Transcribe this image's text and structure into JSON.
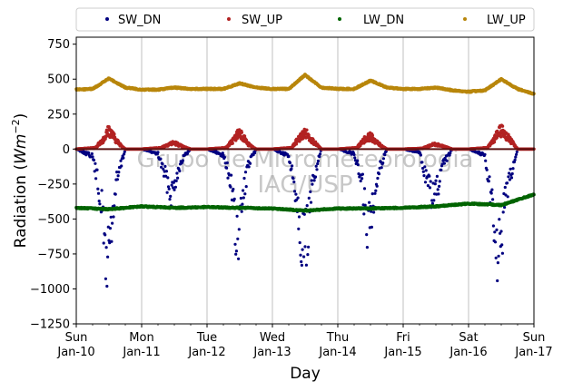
{
  "chart_data": {
    "type": "scatter",
    "xlabel": "Day",
    "ylabel_main": "Radiation (",
    "ylabel_unit": "Wm",
    "ylabel_exp": "−2",
    "ylabel_close": ")",
    "ylim": [
      -1250,
      800
    ],
    "yticks": [
      750,
      500,
      250,
      0,
      -250,
      -500,
      -750,
      -1000,
      -1250
    ],
    "ytick_labels": [
      "750",
      "500",
      "250",
      "0",
      "−250",
      "−500",
      "−750",
      "−1000",
      "−1250"
    ],
    "xlim": [
      "2024-01-10",
      "2024-01-17"
    ],
    "xtick_dates": [
      "2024-01-10",
      "2024-01-11",
      "2024-01-12",
      "2024-01-13",
      "2024-01-14",
      "2024-01-15",
      "2024-01-16",
      "2024-01-17"
    ],
    "xtick_day_labels": [
      "Sun",
      "Mon",
      "Tue",
      "Wed",
      "Thu",
      "Fri",
      "Sat",
      "Sun"
    ],
    "xtick_date_labels": [
      "Jan-10",
      "Jan-11",
      "Jan-12",
      "Jan-13",
      "Jan-14",
      "Jan-15",
      "Jan-16",
      "Jan-17"
    ],
    "grid": "vertical",
    "legend_position": "top",
    "watermark_line1": "Grupo de Micrometeorologia",
    "watermark_line2": "IAG/USP",
    "series": [
      {
        "name": "SW_DN",
        "color": "#000080",
        "x": [
          "2024-01-10",
          "2024-01-10T06:00",
          "2024-01-10T09:00",
          "2024-01-10T11:00",
          "2024-01-10T13:00",
          "2024-01-10T15:00",
          "2024-01-10T18:00",
          "2024-01-11",
          "2024-01-11T06:00",
          "2024-01-11T09:00",
          "2024-01-11T11:00",
          "2024-01-11T13:00",
          "2024-01-11T15:00",
          "2024-01-11T18:00",
          "2024-01-12",
          "2024-01-12T06:00",
          "2024-01-12T09:00",
          "2024-01-12T11:00",
          "2024-01-12T13:00",
          "2024-01-12T15:00",
          "2024-01-12T18:00",
          "2024-01-13",
          "2024-01-13T06:00",
          "2024-01-13T09:00",
          "2024-01-13T11:00",
          "2024-01-13T13:00",
          "2024-01-13T15:00",
          "2024-01-13T18:00",
          "2024-01-14",
          "2024-01-14T06:00",
          "2024-01-14T09:00",
          "2024-01-14T11:00",
          "2024-01-14T13:00",
          "2024-01-14T15:00",
          "2024-01-14T18:00",
          "2024-01-15",
          "2024-01-15T06:00",
          "2024-01-15T09:00",
          "2024-01-15T11:00",
          "2024-01-15T13:00",
          "2024-01-15T15:00",
          "2024-01-15T18:00",
          "2024-01-16",
          "2024-01-16T06:00",
          "2024-01-16T09:00",
          "2024-01-16T11:00",
          "2024-01-16T13:00",
          "2024-01-16T15:00",
          "2024-01-16T18:00",
          "2024-01-17"
        ],
        "values": [
          0,
          -60,
          -420,
          -960,
          -620,
          -250,
          0,
          0,
          -40,
          -250,
          -370,
          -200,
          -80,
          0,
          0,
          -50,
          -300,
          -870,
          -430,
          -150,
          0,
          0,
          -60,
          -390,
          -820,
          -710,
          -250,
          0,
          0,
          -40,
          -300,
          -690,
          -420,
          -180,
          0,
          0,
          -30,
          -280,
          -420,
          -300,
          -120,
          0,
          0,
          -50,
          -520,
          -970,
          -560,
          -250,
          0,
          0
        ]
      },
      {
        "name": "SW_UP",
        "color": "#b22222",
        "x": [
          "2024-01-10",
          "2024-01-10T07:00",
          "2024-01-10T10:00",
          "2024-01-10T12:00",
          "2024-01-10T15:00",
          "2024-01-10T18:00",
          "2024-01-11",
          "2024-01-11T07:00",
          "2024-01-11T10:00",
          "2024-01-11T12:00",
          "2024-01-11T15:00",
          "2024-01-11T18:00",
          "2024-01-12",
          "2024-01-12T07:00",
          "2024-01-12T10:00",
          "2024-01-12T12:00",
          "2024-01-12T15:00",
          "2024-01-12T18:00",
          "2024-01-13",
          "2024-01-13T07:00",
          "2024-01-13T10:00",
          "2024-01-13T12:00",
          "2024-01-13T15:00",
          "2024-01-13T18:00",
          "2024-01-14",
          "2024-01-14T07:00",
          "2024-01-14T10:00",
          "2024-01-14T12:00",
          "2024-01-14T15:00",
          "2024-01-14T18:00",
          "2024-01-15",
          "2024-01-15T07:00",
          "2024-01-15T10:00",
          "2024-01-15T12:00",
          "2024-01-15T15:00",
          "2024-01-15T18:00",
          "2024-01-16",
          "2024-01-16T07:00",
          "2024-01-16T10:00",
          "2024-01-16T12:00",
          "2024-01-16T15:00",
          "2024-01-16T18:00",
          "2024-01-17"
        ],
        "values": [
          0,
          10,
          80,
          150,
          60,
          0,
          0,
          10,
          40,
          50,
          20,
          0,
          0,
          10,
          80,
          140,
          40,
          0,
          0,
          10,
          90,
          130,
          60,
          0,
          0,
          10,
          80,
          100,
          40,
          0,
          0,
          5,
          30,
          40,
          20,
          0,
          0,
          10,
          100,
          150,
          80,
          0,
          0
        ]
      },
      {
        "name": "LW_DN",
        "color": "#006400",
        "x": [
          "2024-01-10",
          "2024-01-10T12:00",
          "2024-01-11",
          "2024-01-11T12:00",
          "2024-01-12",
          "2024-01-12T12:00",
          "2024-01-13",
          "2024-01-13T12:00",
          "2024-01-14",
          "2024-01-14T12:00",
          "2024-01-15",
          "2024-01-15T12:00",
          "2024-01-16",
          "2024-01-16T12:00",
          "2024-01-17"
        ],
        "values": [
          -420,
          -430,
          -410,
          -420,
          -415,
          -420,
          -425,
          -440,
          -425,
          -425,
          -420,
          -410,
          -390,
          -400,
          -325
        ]
      },
      {
        "name": "LW_UP",
        "color": "#b8860b",
        "x": [
          "2024-01-10",
          "2024-01-10T06:00",
          "2024-01-10T12:00",
          "2024-01-10T18:00",
          "2024-01-11",
          "2024-01-11T06:00",
          "2024-01-11T12:00",
          "2024-01-11T18:00",
          "2024-01-12",
          "2024-01-12T06:00",
          "2024-01-12T12:00",
          "2024-01-12T18:00",
          "2024-01-13",
          "2024-01-13T06:00",
          "2024-01-13T12:00",
          "2024-01-13T18:00",
          "2024-01-14",
          "2024-01-14T06:00",
          "2024-01-14T12:00",
          "2024-01-14T18:00",
          "2024-01-15",
          "2024-01-15T06:00",
          "2024-01-15T12:00",
          "2024-01-15T18:00",
          "2024-01-16",
          "2024-01-16T06:00",
          "2024-01-16T12:00",
          "2024-01-16T18:00",
          "2024-01-17"
        ],
        "values": [
          425,
          430,
          505,
          440,
          425,
          425,
          440,
          430,
          430,
          430,
          470,
          440,
          430,
          430,
          530,
          440,
          430,
          430,
          490,
          440,
          430,
          430,
          440,
          420,
          410,
          420,
          500,
          430,
          395
        ]
      }
    ]
  }
}
